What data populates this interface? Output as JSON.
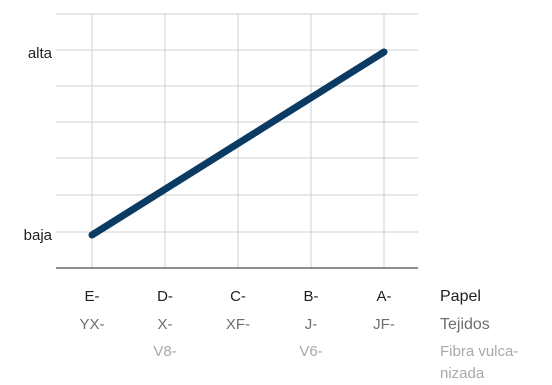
{
  "chart_data": {
    "type": "line",
    "y_categories": [
      "baja",
      "alta"
    ],
    "categories": [
      [
        "E-",
        "YX-",
        ""
      ],
      [
        "D-",
        "X-",
        "V8-"
      ],
      [
        "C-",
        "XF-",
        ""
      ],
      [
        "B-",
        "J-",
        "V6-"
      ],
      [
        "A-",
        "JF-",
        ""
      ]
    ],
    "values": [
      0,
      0.25,
      0.5,
      0.75,
      1
    ],
    "series_color": "#0b3a63",
    "legend_rows": [
      "Papel",
      "Tejidos",
      "Fibra vulca-",
      "nizada"
    ],
    "grid": true
  }
}
